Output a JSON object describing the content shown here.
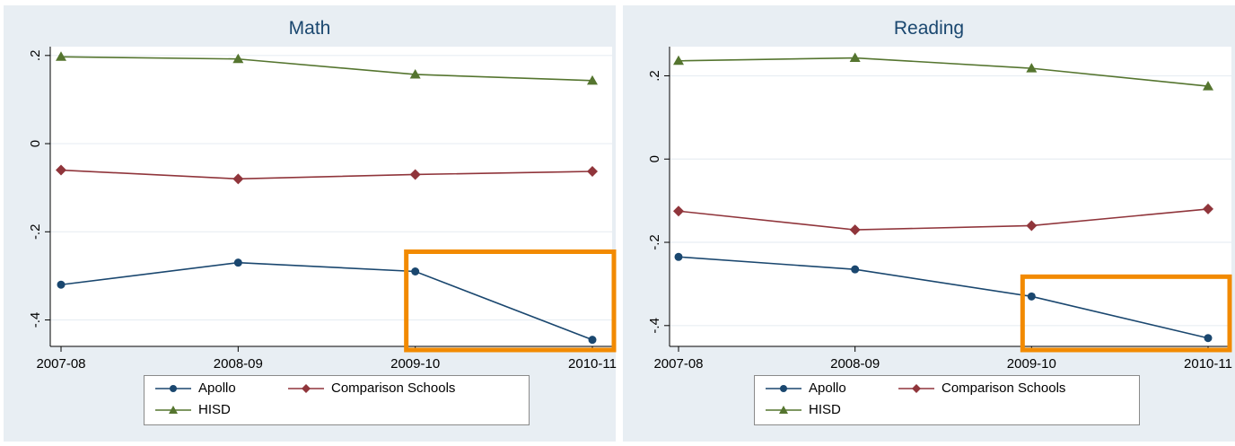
{
  "chart_data": [
    {
      "type": "line",
      "title": "Math",
      "xlabel": "",
      "ylabel": "",
      "categories": [
        "2007-08",
        "2008-09",
        "2009-10",
        "2010-11"
      ],
      "ylim": [
        -0.46,
        0.22
      ],
      "yticks": [
        0.2,
        0,
        -0.2,
        -0.4
      ],
      "ytick_labels": [
        ".2",
        "0",
        "-.2",
        "-.4"
      ],
      "grid": true,
      "legend_position": "bottom",
      "series": [
        {
          "name": "Apollo",
          "values": [
            -0.32,
            -0.27,
            -0.29,
            -0.445
          ],
          "color": "#1a476f",
          "marker": "circle"
        },
        {
          "name": "Comparison Schools",
          "values": [
            -0.06,
            -0.08,
            -0.07,
            -0.063
          ],
          "color": "#90353b",
          "marker": "diamond"
        },
        {
          "name": "HISD",
          "values": [
            0.197,
            0.192,
            0.157,
            0.143
          ],
          "color": "#55752f",
          "marker": "triangle"
        }
      ],
      "highlight_box": {
        "from_category": "2009-10",
        "to_category": "2010-11",
        "color": "#f28a00"
      }
    },
    {
      "type": "line",
      "title": "Reading",
      "xlabel": "",
      "ylabel": "",
      "categories": [
        "2007-08",
        "2008-09",
        "2009-10",
        "2010-11"
      ],
      "ylim": [
        -0.45,
        0.27
      ],
      "yticks": [
        0.2,
        0,
        -0.2,
        -0.4
      ],
      "ytick_labels": [
        ".2",
        "0",
        "-.2",
        "-.4"
      ],
      "grid": true,
      "legend_position": "bottom",
      "series": [
        {
          "name": "Apollo",
          "values": [
            -0.235,
            -0.265,
            -0.33,
            -0.43
          ],
          "color": "#1a476f",
          "marker": "circle"
        },
        {
          "name": "Comparison Schools",
          "values": [
            -0.125,
            -0.17,
            -0.16,
            -0.12
          ],
          "color": "#90353b",
          "marker": "diamond"
        },
        {
          "name": "HISD",
          "values": [
            0.236,
            0.243,
            0.218,
            0.175
          ],
          "color": "#55752f",
          "marker": "triangle"
        }
      ],
      "highlight_box": {
        "from_category": "2009-10",
        "to_category": "2010-11",
        "color": "#f28a00"
      }
    }
  ]
}
